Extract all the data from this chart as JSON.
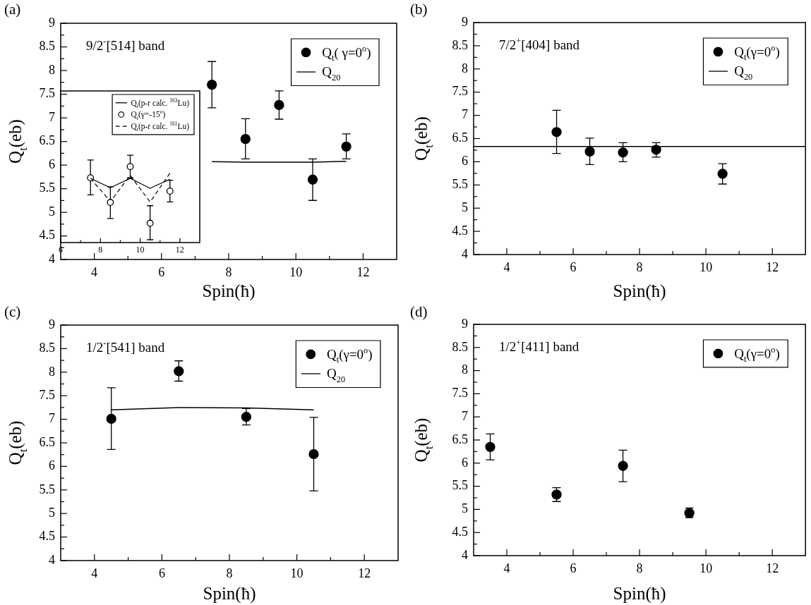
{
  "chart_data": [
    {
      "type": "scatter",
      "title": "(a)",
      "xlabel": "Spin(ħ)",
      "ylabel": "Q$_{t}$(eb)",
      "annotations": [
        "9/2$^{-}$[514] band"
      ],
      "legend": "top right",
      "xlim": [
        3,
        13
      ],
      "ylim": [
        4,
        9
      ],
      "xticks": [
        4,
        {
          "value": 5,
          "label": null
        },
        6,
        {
          "value": 7,
          "label": null
        },
        8,
        {
          "value": 9,
          "label": null
        },
        10,
        {
          "value": 11,
          "label": null
        },
        12
      ],
      "yticks": [
        4,
        {
          "value": 4.25,
          "label": null
        },
        {
          "value": 7.75,
          "label": null
        },
        8,
        {
          "value": 8.25,
          "label": null
        },
        8.5,
        {
          "value": 8.75,
          "label": null
        },
        9
      ],
      "series": [
        {
          "name": "Q$_{t}$( γ=0$^{o}$)",
          "type": "scatter",
          "color": "#000000",
          "marker": "circle",
          "x": [
            7.5,
            8.5,
            9.5,
            10.5,
            11.5
          ],
          "values": [
            7.7,
            6.55,
            7.27,
            5.69,
            6.39
          ],
          "errors": [
            [
              7.21,
              8.19
            ],
            [
              6.13,
              6.98
            ],
            [
              6.97,
              7.57
            ],
            [
              5.25,
              6.13
            ],
            [
              6.13,
              6.66
            ]
          ]
        },
        {
          "name": "Q$_{20}$",
          "type": "line",
          "color": "#000000",
          "line_style": "solid",
          "x": [
            7.5,
            8.5,
            9.5,
            10.5,
            11.5
          ],
          "values": [
            6.07,
            6.06,
            6.06,
            6.06,
            6.08
          ]
        }
      ]
    },
    {
      "type": "scatter",
      "title": "(b)",
      "xlabel": "Spin(ħ)",
      "ylabel": "Q$_{t}$(eb)",
      "annotations": [
        "7/2$^{+}$[404] band"
      ],
      "legend": "top right",
      "xlim": [
        3,
        13
      ],
      "ylim": [
        4,
        9
      ],
      "xticks": [
        4,
        {
          "value": 5,
          "label": null
        },
        6,
        {
          "value": 7,
          "label": null
        },
        8,
        {
          "value": 9,
          "label": null
        },
        10,
        {
          "value": 11,
          "label": null
        },
        12
      ],
      "yticks": [
        4,
        {
          "value": 4.25,
          "label": null
        },
        4.5,
        {
          "value": 4.75,
          "label": null
        },
        5,
        {
          "value": 5.25,
          "label": null
        },
        5.5,
        {
          "value": 5.75,
          "label": null
        },
        6,
        {
          "value": 6.25,
          "label": null
        },
        6.5,
        {
          "value": 6.75,
          "label": null
        },
        7,
        {
          "value": 7.25,
          "label": null
        },
        7.5,
        {
          "value": 7.75,
          "label": null
        },
        8,
        {
          "value": 8.25,
          "label": null
        },
        8.5,
        {
          "value": 8.75,
          "label": null
        },
        9
      ],
      "series": [
        {
          "name": "Q$_{t}$(γ=0$^{o}$)",
          "type": "scatter",
          "color": "#000000",
          "marker": "circle",
          "x": [
            5.5,
            6.5,
            7.5,
            8.5,
            10.5
          ],
          "values": [
            6.64,
            6.22,
            6.2,
            6.26,
            5.74
          ],
          "errors": [
            [
              6.18,
              7.11
            ],
            [
              5.94,
              6.51
            ],
            [
              6.0,
              6.41
            ],
            [
              6.1,
              6.41
            ],
            [
              5.52,
              5.96
            ]
          ]
        },
        {
          "name": "Q$_{20}$",
          "type": "line",
          "color": "#000000",
          "line_style": "solid",
          "x": [
            3,
            13
          ],
          "values": [
            6.33,
            6.33
          ]
        }
      ]
    },
    {
      "type": "scatter",
      "title": "(c)",
      "xlabel": "Spin(ħ)",
      "ylabel": "Q$_{t}$(eb)",
      "annotations": [
        "1/2$^{-}$[541] band"
      ],
      "legend": "top right",
      "xlim": [
        3,
        13
      ],
      "ylim": [
        4,
        9
      ],
      "xticks": [
        4,
        {
          "value": 5,
          "label": null
        },
        6,
        {
          "value": 7,
          "label": null
        },
        8,
        {
          "value": 9,
          "label": null
        },
        10,
        {
          "value": 11,
          "label": null
        },
        12
      ],
      "yticks": [
        4,
        {
          "value": 4.25,
          "label": null
        },
        4.5,
        {
          "value": 4.75,
          "label": null
        },
        5,
        {
          "value": 5.25,
          "label": null
        },
        5.5,
        {
          "value": 5.75,
          "label": null
        },
        6,
        {
          "value": 6.25,
          "label": null
        },
        6.5,
        {
          "value": 6.75,
          "label": null
        },
        7,
        {
          "value": 7.25,
          "label": null
        },
        7.5,
        {
          "value": 7.75,
          "label": null
        },
        8,
        {
          "value": 8.25,
          "label": null
        },
        8.5,
        {
          "value": 8.75,
          "label": null
        },
        9
      ],
      "series": [
        {
          "name": "Q$_{t}$(γ=0$^{o}$)",
          "type": "scatter",
          "color": "#000000",
          "marker": "circle",
          "x": [
            4.5,
            6.5,
            8.5,
            10.5
          ],
          "values": [
            7.01,
            8.02,
            7.05,
            6.26
          ],
          "errors": [
            [
              6.36,
              7.67
            ],
            [
              7.81,
              8.24
            ],
            [
              6.88,
              7.23
            ],
            [
              5.48,
              7.04
            ]
          ]
        },
        {
          "name": "Q$_{20}$",
          "type": "line",
          "color": "#000000",
          "line_style": "solid",
          "x": [
            4.5,
            6.5,
            8.5,
            10.5
          ],
          "values": [
            7.2,
            7.25,
            7.24,
            7.2
          ]
        }
      ]
    },
    {
      "type": "scatter",
      "title": "(d)",
      "xlabel": "Spin(ħ)",
      "ylabel": "Q$_{t}$(eb)",
      "annotations": [
        "1/2$^{+}$[411] band"
      ],
      "legend": "top right",
      "xlim": [
        3,
        13
      ],
      "ylim": [
        4,
        9
      ],
      "xticks": [
        4,
        {
          "value": 5,
          "label": null
        },
        6,
        {
          "value": 7,
          "label": null
        },
        8,
        {
          "value": 9,
          "label": null
        },
        10,
        {
          "value": 11,
          "label": null
        },
        12
      ],
      "yticks": [
        4,
        {
          "value": 4.25,
          "label": null
        },
        4.5,
        {
          "value": 4.75,
          "label": null
        },
        5,
        {
          "value": 5.25,
          "label": null
        },
        5.5,
        {
          "value": 5.75,
          "label": null
        },
        6,
        {
          "value": 6.25,
          "label": null
        },
        6.5,
        {
          "value": 6.75,
          "label": null
        },
        7,
        {
          "value": 7.25,
          "label": null
        },
        7.5,
        {
          "value": 7.75,
          "label": null
        },
        8,
        {
          "value": 8.25,
          "label": null
        },
        8.5,
        {
          "value": 8.75,
          "label": null
        },
        9
      ],
      "series": [
        {
          "name": "Q$_{t}$(γ=0$^{o}$)",
          "type": "scatter",
          "color": "#000000",
          "marker": "circle",
          "x": [
            3.5,
            5.5,
            7.5,
            9.5
          ],
          "values": [
            6.35,
            5.32,
            5.94,
            4.92
          ],
          "errors": [
            [
              6.07,
              6.63
            ],
            [
              5.17,
              5.47
            ],
            [
              5.6,
              6.28
            ],
            [
              4.82,
              5.03
            ]
          ]
        }
      ]
    },
    {
      "type": "scatter",
      "legend": "top right",
      "xlim": [
        6,
        13
      ],
      "ylim": [
        4.36,
        7.57
      ],
      "xticks": [
        6,
        {
          "value": 7,
          "label": null
        },
        8,
        {
          "value": 9,
          "label": null
        },
        10,
        {
          "value": 11,
          "label": null
        },
        12
      ],
      "yticks": [
        4.5,
        {
          "value": 4.75,
          "label": null
        },
        5,
        {
          "value": 5.25,
          "label": null
        },
        5.5,
        {
          "value": 5.75,
          "label": null
        },
        6,
        {
          "value": 6.25,
          "label": null
        },
        6.5,
        {
          "value": 6.75,
          "label": null
        },
        7,
        {
          "value": 7.25,
          "label": null
        },
        7.5
      ],
      "series": [
        {
          "name": "Q$_{t}$(p-r calc. $^{163}$Lu)",
          "type": "line",
          "color": "#000000",
          "line_style": "solid",
          "x": [
            7.5,
            8.5,
            9.5,
            10.5,
            11.5
          ],
          "values": [
            5.72,
            5.52,
            5.72,
            5.51,
            5.7
          ]
        },
        {
          "name": "Q$_{t}$(γ=-15$^{o}$)",
          "type": "scatter",
          "color": "#000000",
          "marker": "circle",
          "x": [
            7.5,
            8.5,
            9.5,
            10.5,
            11.5
          ],
          "values": [
            5.73,
            5.21,
            5.97,
            4.77,
            5.45
          ],
          "errors": [
            [
              5.37,
              6.11
            ],
            [
              4.87,
              5.54
            ],
            [
              5.73,
              6.21
            ],
            [
              4.42,
              5.14
            ],
            [
              5.22,
              5.68
            ]
          ]
        },
        {
          "name": "Q$_{t}$(p-r calc. $^{161}$Lu)",
          "type": "line",
          "color": "#000000",
          "line_style": "dashed",
          "x": [
            7.5,
            8.5,
            9.5,
            10.5,
            11.5
          ],
          "values": [
            5.72,
            5.23,
            5.78,
            5.22,
            5.83
          ]
        }
      ]
    }
  ]
}
